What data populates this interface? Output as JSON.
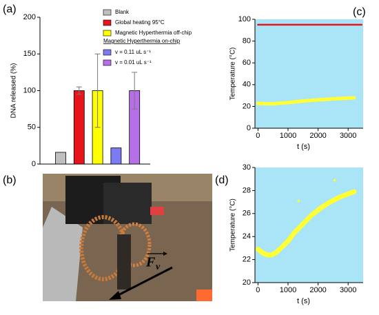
{
  "panel_labels": [
    "(a)",
    "(b)",
    "(c)",
    "(d)"
  ],
  "photo_annotation": {
    "symbol": "F",
    "subscript": "v"
  },
  "chart_data": [
    {
      "type": "bar",
      "ylabel": "DNA released (%)",
      "ylim": [
        0,
        200
      ],
      "yticks": [
        0,
        50,
        100,
        150,
        200
      ],
      "legend_subtitle": "Magnetic Hyperthermia on-chip",
      "legend": "top-right",
      "series": [
        {
          "name": "Blank",
          "color": "#bfbfbf",
          "values": [
            16
          ]
        },
        {
          "name": "Global heating 95°C",
          "color": "#e8141c",
          "values": [
            100
          ],
          "errors": [
            5
          ]
        },
        {
          "name": "Magnetic Hyperthermia off-chip",
          "color": "#ffff00",
          "values": [
            100
          ],
          "errors": [
            50
          ]
        },
        {
          "name": "v = 0.11 uL s⁻¹",
          "color": "#7b7bf2",
          "values": [
            22
          ]
        },
        {
          "name": "v = 0.01 uL s⁻¹",
          "color": "#b66fe6",
          "values": [
            100
          ],
          "errors": [
            25
          ]
        }
      ]
    },
    {
      "type": "line",
      "xlabel": "t (s)",
      "ylabel": "Temperature (°C)",
      "background": "#a9e4f7",
      "xlim": [
        -100,
        3500
      ],
      "xticks": [
        0,
        1000,
        2000,
        3000
      ],
      "ylim": [
        0,
        100
      ],
      "yticks": [
        0,
        20,
        40,
        60,
        80,
        100
      ],
      "series": [
        {
          "color": "#e8141c",
          "width": 2.5,
          "x": [
            0,
            3450
          ],
          "values": [
            95,
            95
          ]
        },
        {
          "color": "#ffff33",
          "width": 5,
          "x": [
            0,
            250,
            500,
            1000,
            1500,
            2000,
            2500,
            3000,
            3200
          ],
          "values": [
            22.8,
            22.5,
            22.5,
            23.5,
            25,
            26,
            27,
            27.7,
            27.9
          ]
        }
      ]
    },
    {
      "type": "line",
      "xlabel": "t (s)",
      "ylabel": "Temperature (°C)",
      "background": "#a9e4f7",
      "xlim": [
        -100,
        3500
      ],
      "xticks": [
        0,
        1000,
        2000,
        3000
      ],
      "ylim": [
        20,
        30
      ],
      "yticks": [
        20,
        22,
        24,
        26,
        28,
        30
      ],
      "series": [
        {
          "color": "#ffff33",
          "width": 7,
          "x": [
            0,
            150,
            300,
            450,
            600,
            800,
            1000,
            1200,
            1500,
            1800,
            2100,
            2400,
            2700,
            3000,
            3200
          ],
          "values": [
            22.9,
            22.6,
            22.4,
            22.4,
            22.6,
            23.1,
            23.6,
            24.3,
            25.1,
            25.9,
            26.5,
            27.0,
            27.4,
            27.7,
            27.9
          ]
        },
        {
          "color": "#ffff33",
          "style": "points",
          "x": [
            1350,
            2550
          ],
          "values": [
            27.1,
            28.9
          ]
        }
      ]
    }
  ]
}
